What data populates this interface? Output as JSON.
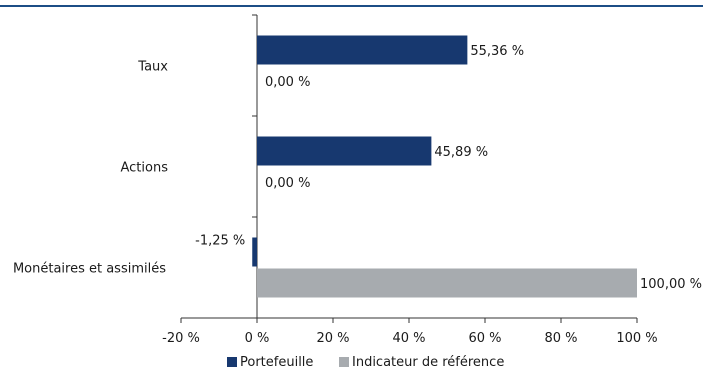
{
  "chart_data": {
    "type": "bar",
    "orientation": "horizontal",
    "categories": [
      "Taux",
      "Actions",
      "Monétaires et assimilés"
    ],
    "series": [
      {
        "name": "Portefeuille",
        "values": [
          55.36,
          45.89,
          -1.25
        ],
        "labels": [
          "55,36 %",
          "45,89 %",
          "-1,25 %"
        ],
        "color": "#17386f"
      },
      {
        "name": "Indicateur de référence",
        "values": [
          0.0,
          0.0,
          100.0
        ],
        "labels": [
          "0,00 %",
          "0,00 %",
          "100,00 %"
        ],
        "color": "#a7abaf"
      }
    ],
    "xlim": [
      -20,
      100
    ],
    "xticks": [
      -20,
      0,
      20,
      40,
      60,
      80,
      100
    ],
    "xtick_labels": [
      "-20 %",
      "0 %",
      "20 %",
      "40 %",
      "60 %",
      "80 %",
      "100 %"
    ],
    "grid": false,
    "legend_position": "bottom",
    "title": "",
    "xlabel": "",
    "ylabel": ""
  },
  "colors": {
    "accent": "#1c4e86"
  }
}
